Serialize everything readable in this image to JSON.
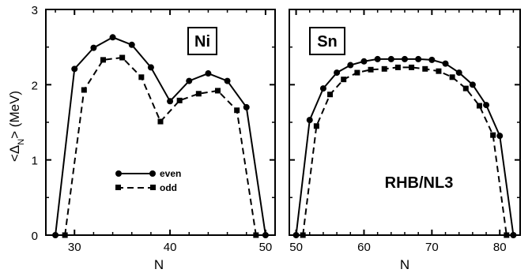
{
  "chart_data": [
    {
      "type": "line",
      "panel_label": "Ni",
      "xlabel": "N",
      "ylabel": "<Δ_N> (MeV)",
      "xlim": [
        27,
        51
      ],
      "ylim": [
        0,
        3
      ],
      "xticks": [
        30,
        40,
        50
      ],
      "yticks": [
        0,
        1,
        2,
        3
      ],
      "legend": {
        "placement": "lower-center",
        "entries": [
          "even",
          "odd"
        ]
      },
      "series": [
        {
          "name": "even",
          "line": "solid",
          "marker": "circle",
          "x": [
            28,
            30,
            32,
            34,
            36,
            38,
            40,
            42,
            44,
            46,
            48,
            50
          ],
          "y": [
            0.0,
            2.21,
            2.49,
            2.63,
            2.53,
            2.23,
            1.78,
            2.05,
            2.15,
            2.05,
            1.7,
            0.0
          ]
        },
        {
          "name": "odd",
          "line": "dashed",
          "marker": "square",
          "x": [
            29,
            31,
            33,
            35,
            37,
            39,
            41,
            43,
            45,
            47,
            49
          ],
          "y": [
            0.0,
            1.93,
            2.33,
            2.36,
            2.1,
            1.51,
            1.79,
            1.88,
            1.92,
            1.66,
            0.0
          ]
        }
      ]
    },
    {
      "type": "line",
      "panel_label": "Sn",
      "annotation": "RHB/NL3",
      "xlabel": "N",
      "xlim": [
        49,
        83
      ],
      "ylim": [
        0,
        3
      ],
      "xticks": [
        50,
        60,
        70,
        80
      ],
      "yticks": [
        0,
        1,
        2,
        3
      ],
      "series": [
        {
          "name": "even",
          "line": "solid",
          "marker": "circle",
          "x": [
            50,
            52,
            54,
            56,
            58,
            60,
            62,
            64,
            66,
            68,
            70,
            72,
            74,
            76,
            78,
            80,
            82
          ],
          "y": [
            0.0,
            1.53,
            1.95,
            2.16,
            2.26,
            2.31,
            2.34,
            2.34,
            2.34,
            2.34,
            2.33,
            2.28,
            2.16,
            2.0,
            1.73,
            1.32,
            0.0
          ]
        },
        {
          "name": "odd",
          "line": "dashed",
          "marker": "square",
          "x": [
            51,
            53,
            55,
            57,
            59,
            61,
            63,
            65,
            67,
            69,
            71,
            73,
            75,
            77,
            79,
            81
          ],
          "y": [
            0.0,
            1.45,
            1.87,
            2.07,
            2.16,
            2.2,
            2.21,
            2.23,
            2.23,
            2.21,
            2.18,
            2.1,
            1.95,
            1.72,
            1.33,
            0.0
          ]
        }
      ]
    }
  ]
}
